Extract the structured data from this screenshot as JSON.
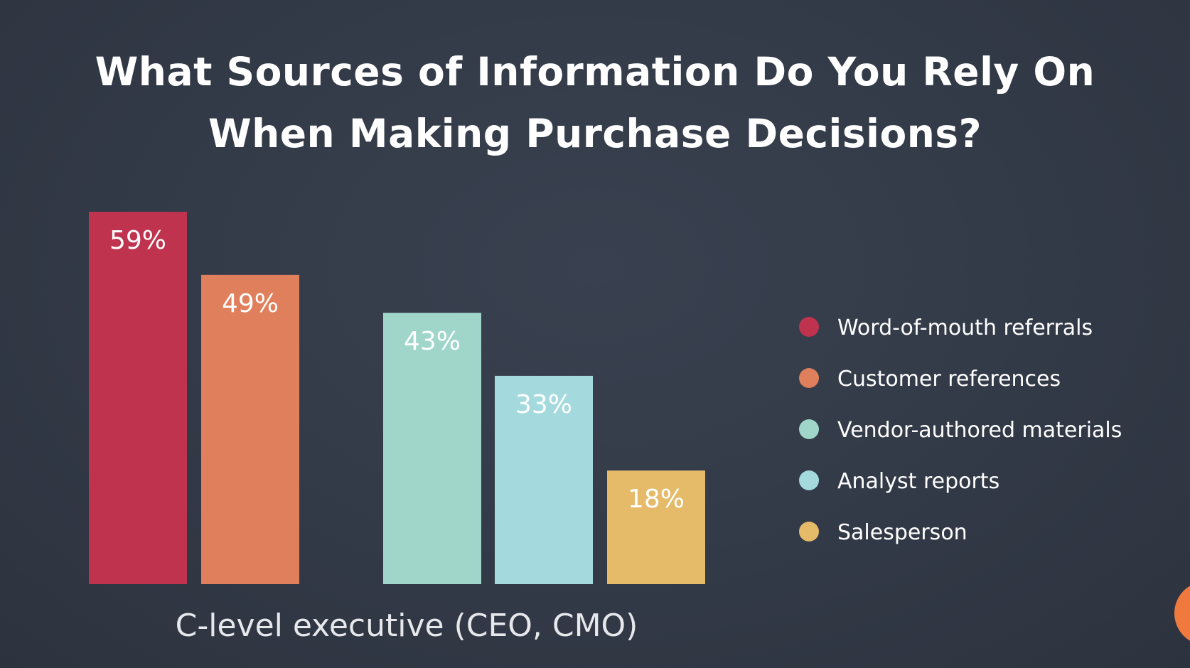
{
  "title_lines": [
    "What Sources of Information Do You Rely On",
    "When Making Purchase Decisions?"
  ],
  "chart_data": {
    "type": "bar",
    "title": "What Sources of Information Do You Rely On When Making Purchase Decisions?",
    "categories": [
      "C-level executive (CEO, CMO)"
    ],
    "series": [
      {
        "name": "Word-of-mouth referrals",
        "values": [
          59
        ],
        "label": "59%",
        "color": "#c0334f"
      },
      {
        "name": "Customer references",
        "values": [
          49
        ],
        "label": "49%",
        "color": "#e07f5c"
      },
      {
        "name": "Vendor-authored materials",
        "values": [
          43
        ],
        "label": "43%",
        "color": "#9fd6c9"
      },
      {
        "name": "Analyst reports",
        "values": [
          33
        ],
        "label": "33%",
        "color": "#a4dade"
      },
      {
        "name": "Salesperson",
        "values": [
          18
        ],
        "label": "18%",
        "color": "#e5bb6a"
      }
    ],
    "ylim": [
      0,
      59
    ],
    "grid": false,
    "legend_position": "right"
  }
}
